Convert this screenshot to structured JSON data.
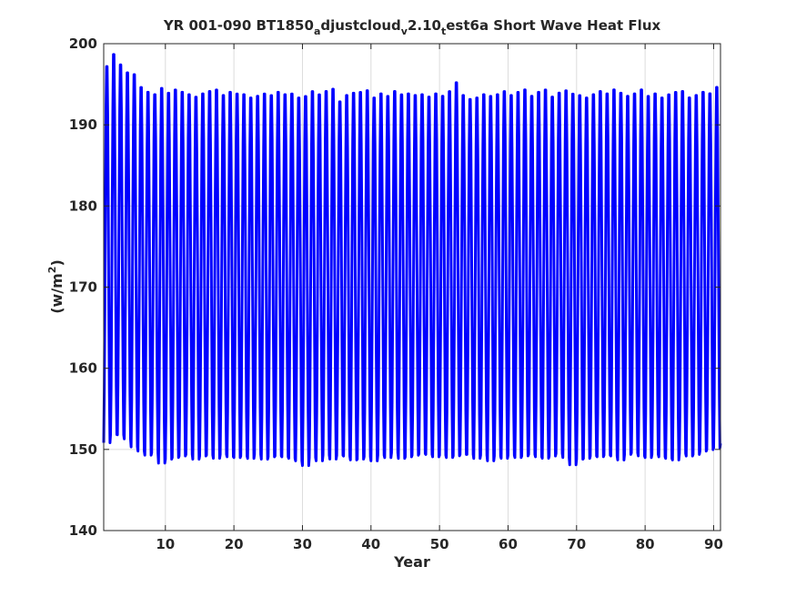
{
  "chart_data": {
    "type": "line",
    "title": {
      "t1": "YR 001-090 BT1850",
      "s1": "a",
      "t2": "djustcloud",
      "s2": "v",
      "t3": "2.10",
      "s3": "t",
      "t4": "est6a Short Wave Heat Flux"
    },
    "xlabel": "Year",
    "ylabel": {
      "prefix": "(w/m",
      "sup": "2",
      "suffix": ")"
    },
    "xlim": [
      1,
      91
    ],
    "ylim": [
      140,
      200
    ],
    "xticks": [
      10,
      20,
      30,
      40,
      50,
      60,
      70,
      80,
      90
    ],
    "yticks": [
      140,
      150,
      160,
      170,
      180,
      190,
      200
    ],
    "grid": true,
    "series": [
      {
        "color": "#0000ff",
        "sampling": "monthly, 12 points per year, starting at year 1",
        "annual_max": [
          198,
          199.5,
          198.2,
          197.2,
          197,
          195.4,
          194.8,
          194.5,
          195.3,
          194.7,
          195.1,
          194.8,
          194.5,
          194.2,
          194.6,
          194.9,
          195.1,
          194.4,
          194.8,
          194.6,
          194.5,
          194.1,
          194.3,
          194.6,
          194.4,
          194.8,
          194.5,
          194.6,
          194.1,
          194.3,
          194.9,
          194.5,
          194.9,
          195.2,
          193.6,
          194.4,
          194.7,
          194.8,
          195,
          194.1,
          194.6,
          194.3,
          194.9,
          194.5,
          194.6,
          194.4,
          194.5,
          194.2,
          194.6,
          194.3,
          194.9,
          196,
          194.4,
          193.9,
          194.1,
          194.5,
          194.3,
          194.5,
          194.9,
          194.4,
          194.8,
          195.1,
          194.3,
          194.8,
          195.1,
          194.2,
          194.7,
          195,
          194.6,
          194.4,
          194.1,
          194.5,
          194.9,
          194.6,
          195.1,
          194.7,
          194.3,
          194.6,
          195.1,
          194.3,
          194.6,
          194.1,
          194.5,
          194.8,
          194.9,
          194.1,
          194.4,
          194.8,
          194.6,
          195.4,
          193.8
        ],
        "annual_min": [
          150,
          151,
          151,
          150.5,
          149.5,
          149,
          148.5,
          148.8,
          147.5,
          148,
          148.2,
          148.4,
          148.6,
          148,
          148.4,
          148.5,
          148.1,
          148.6,
          148.3,
          148.2,
          148.4,
          148.1,
          148.6,
          148,
          148.3,
          148.4,
          148.3,
          148.1,
          147.8,
          147.2,
          148.2,
          147.8,
          148.5,
          148,
          148.5,
          148.4,
          147.9,
          148,
          148.3,
          147.8,
          148.5,
          148.2,
          148.8,
          148.1,
          148.3,
          148.5,
          148.7,
          148.6,
          148.3,
          148.5,
          148.2,
          148.4,
          148.6,
          148.6,
          148.1,
          148.5,
          147.8,
          148.4,
          148.1,
          148.5,
          148.2,
          148.4,
          148.6,
          148.3,
          148.1,
          148.4,
          148.7,
          148.2,
          147.3,
          148,
          148.1,
          148.4,
          148.3,
          148.5,
          148.4,
          147.9,
          148.6,
          148.8,
          148.4,
          148.2,
          148.6,
          148.3,
          148.1,
          147.9,
          148.7,
          148.4,
          148.6,
          149,
          149.2,
          149.4,
          150
        ]
      }
    ]
  }
}
